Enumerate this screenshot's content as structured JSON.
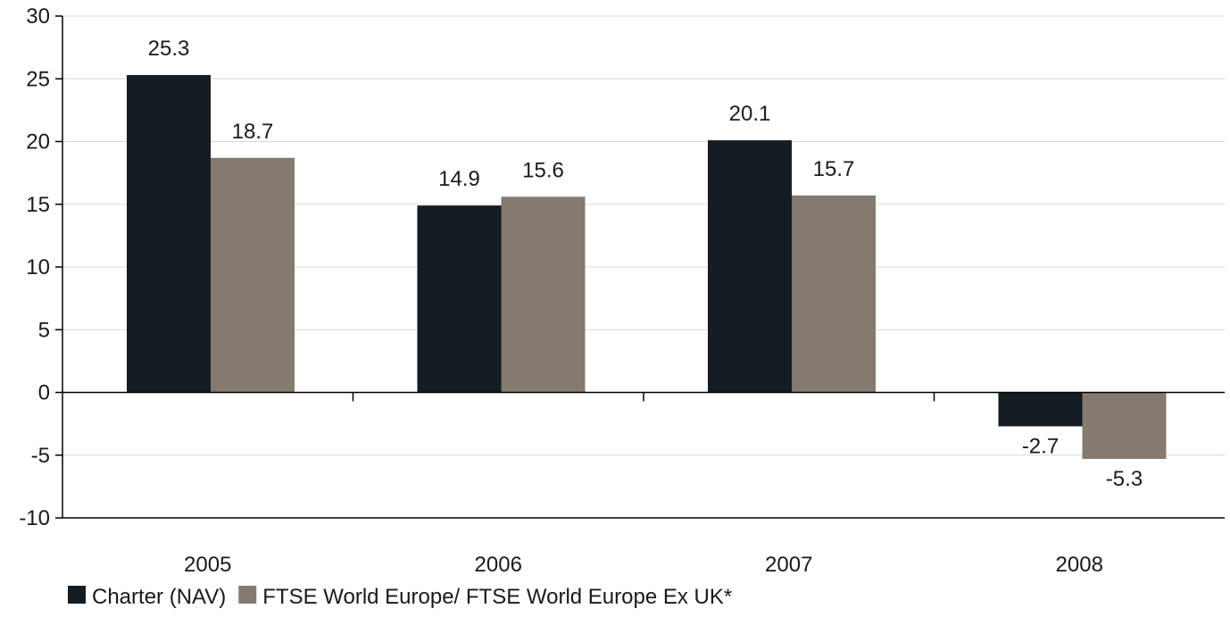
{
  "chart_data": {
    "type": "bar",
    "title": "",
    "xlabel": "",
    "ylabel": "",
    "categories": [
      "2005",
      "2006",
      "2007",
      "2008"
    ],
    "series": [
      {
        "name": "Charter (NAV)",
        "color": "#141c24",
        "values": [
          25.3,
          14.9,
          20.1,
          -2.7
        ]
      },
      {
        "name": "FTSE World Europe/ FTSE World Europe Ex UK*",
        "color": "#857a6f",
        "values": [
          18.7,
          15.6,
          15.7,
          -5.3
        ]
      }
    ],
    "data_labels": [
      [
        "25.3",
        "14.9",
        "20.1",
        "-2.7"
      ],
      [
        "18.7",
        "15.6",
        "15.7",
        "-5.3"
      ]
    ],
    "ylim": [
      -10,
      30
    ],
    "yticks": [
      -10,
      -5,
      0,
      5,
      10,
      15,
      20,
      25,
      30
    ],
    "grid": true,
    "legend_position": "bottom-left"
  }
}
